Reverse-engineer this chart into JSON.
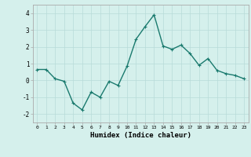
{
  "x": [
    0,
    1,
    2,
    3,
    4,
    5,
    6,
    7,
    8,
    9,
    10,
    11,
    12,
    13,
    14,
    15,
    16,
    17,
    18,
    19,
    20,
    21,
    22,
    23
  ],
  "y": [
    0.65,
    0.65,
    0.1,
    -0.05,
    -1.35,
    -1.75,
    -0.7,
    -1.0,
    -0.05,
    -0.3,
    0.85,
    2.45,
    3.2,
    3.9,
    2.05,
    1.85,
    2.1,
    1.6,
    0.9,
    1.3,
    0.6,
    0.4,
    0.3,
    0.1
  ],
  "line_color": "#1a7a6e",
  "marker": "+",
  "marker_color": "#1a7a6e",
  "bg_color": "#d5f0ec",
  "grid_color": "#b8dbd8",
  "xlabel": "Humidex (Indice chaleur)",
  "xlim": [
    -0.5,
    23.5
  ],
  "ylim": [
    -2.5,
    4.5
  ],
  "yticks": [
    -2,
    -1,
    0,
    1,
    2,
    3,
    4
  ],
  "xticks": [
    0,
    1,
    2,
    3,
    4,
    5,
    6,
    7,
    8,
    9,
    10,
    11,
    12,
    13,
    14,
    15,
    16,
    17,
    18,
    19,
    20,
    21,
    22,
    23
  ],
  "linewidth": 1.0,
  "markersize": 3.5
}
